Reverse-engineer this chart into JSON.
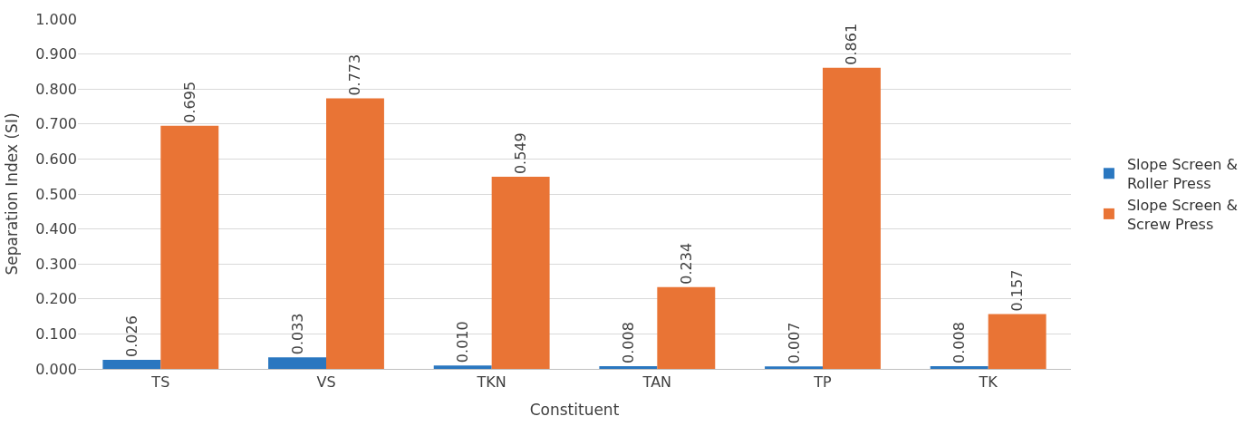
{
  "chart_data": {
    "type": "bar",
    "xlabel": "Constituent",
    "ylabel": "Separation Index (SI)",
    "categories": [
      "TS",
      "VS",
      "TKN",
      "TAN",
      "TP",
      "TK"
    ],
    "series": [
      {
        "name": "Slope Screen & Roller Press",
        "color": "#2a77c0",
        "values": [
          0.026,
          0.033,
          0.01,
          0.008,
          0.007,
          0.008
        ],
        "value_labels": [
          "0.026",
          "0.033",
          "0.010",
          "0.008",
          "0.007",
          "0.008"
        ]
      },
      {
        "name": "Slope Screen & Screw Press",
        "color": "#e97435",
        "values": [
          0.695,
          0.773,
          0.549,
          0.234,
          0.861,
          0.157
        ],
        "value_labels": [
          "0.695",
          "0.773",
          "0.549",
          "0.234",
          "0.861",
          "0.157"
        ]
      }
    ],
    "ylim": [
      0,
      1
    ],
    "yticks": [
      {
        "value": 0,
        "label": "0.000"
      },
      {
        "value": 0.1,
        "label": "0.100"
      },
      {
        "value": 0.2,
        "label": "0.200"
      },
      {
        "value": 0.3,
        "label": "0.300"
      },
      {
        "value": 0.4,
        "label": "0.400"
      },
      {
        "value": 0.5,
        "label": "0.500"
      },
      {
        "value": 0.6,
        "label": "0.600"
      },
      {
        "value": 0.7,
        "label": "0.700"
      },
      {
        "value": 0.8,
        "label": "0.800"
      },
      {
        "value": 0.9,
        "label": "0.900"
      },
      {
        "value": 1,
        "label": "1.000"
      }
    ],
    "grid": "y",
    "legend": "right"
  }
}
